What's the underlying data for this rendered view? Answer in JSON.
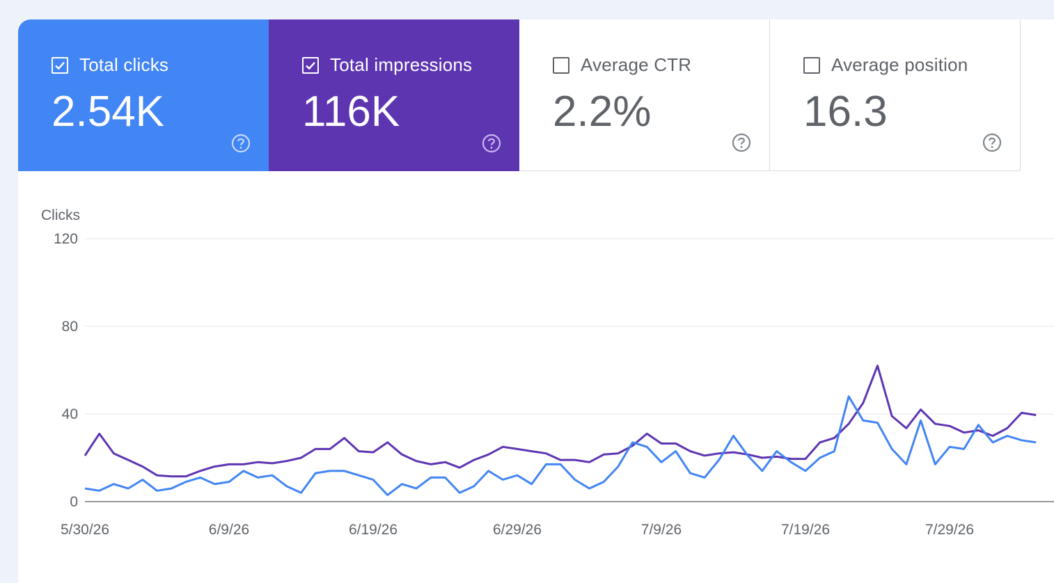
{
  "colors": {
    "clicks": "#4285f4",
    "impressions": "#5e35b1",
    "page_bg": "#eef2f9"
  },
  "cards": [
    {
      "label": "Total clicks",
      "value": "2.54K",
      "checked": true,
      "help_icon": "help-circle-icon"
    },
    {
      "label": "Total impressions",
      "value": "116K",
      "checked": true,
      "help_icon": "help-circle-icon"
    },
    {
      "label": "Average CTR",
      "value": "2.2%",
      "checked": false,
      "help_icon": "help-circle-icon"
    },
    {
      "label": "Average position",
      "value": "16.3",
      "checked": false,
      "help_icon": "help-circle-icon"
    }
  ],
  "chart_data": {
    "type": "line",
    "ylabel": "Clicks",
    "ylim": [
      0,
      120
    ],
    "yticks": [
      0,
      40,
      80,
      120
    ],
    "grid": true,
    "x_tick_labels": [
      "5/30/26",
      "6/9/26",
      "6/19/26",
      "6/29/26",
      "7/9/26",
      "7/19/26",
      "7/29/26"
    ],
    "x_start": "2026-05-30",
    "series": [
      {
        "color": "#5e35b1",
        "values": [
          21,
          31,
          22,
          19,
          16,
          12,
          11.5,
          11.5,
          14,
          16,
          17,
          17,
          18,
          17.5,
          18.5,
          20,
          24,
          24,
          29,
          23,
          22.5,
          27,
          21.5,
          18.5,
          17,
          18,
          15.5,
          19,
          21.5,
          25,
          24,
          23,
          22,
          19,
          19,
          18,
          21.5,
          22,
          25.5,
          31,
          26.5,
          26.5,
          23,
          21,
          22,
          22.5,
          21.5,
          20,
          20.5,
          19.5,
          19.5,
          27,
          29,
          35.5,
          45,
          62,
          39,
          33.5,
          42,
          35.5,
          34.5,
          31.5,
          32.5,
          30,
          33.5,
          40.5,
          39.5
        ]
      },
      {
        "color": "#4285f4",
        "values": [
          6,
          5,
          8,
          6,
          10,
          5,
          6,
          9,
          11,
          8,
          9,
          14,
          11,
          12,
          7,
          4,
          13,
          14,
          14,
          12,
          10,
          3,
          8,
          6,
          11,
          11,
          4,
          7,
          14,
          10,
          12,
          8,
          17,
          17,
          10,
          6,
          9,
          16,
          27,
          25,
          18,
          23,
          13,
          11,
          19,
          30,
          21,
          14,
          23,
          18,
          14,
          20,
          23,
          48,
          37,
          36,
          24,
          17,
          37,
          17,
          25,
          24,
          35,
          27,
          30,
          28,
          27
        ]
      }
    ]
  }
}
